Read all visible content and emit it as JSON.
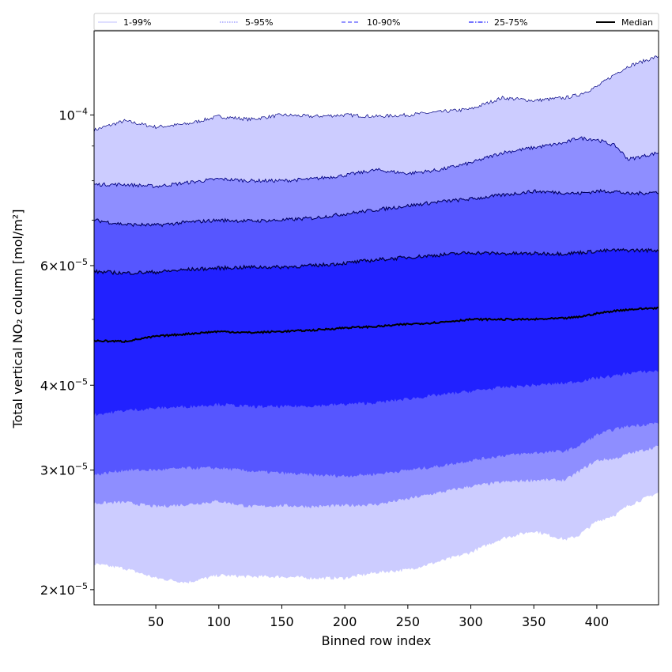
{
  "chart_data": {
    "type": "area",
    "title": "",
    "xlabel": "Binned row index",
    "ylabel": "Total vertical NO₂ column [mol/m²]",
    "y_scale": "log",
    "xlim": [
      1,
      449
    ],
    "ylim": [
      1.9e-05,
      0.000133
    ],
    "x_ticks": [
      50,
      100,
      150,
      200,
      250,
      300,
      350,
      400
    ],
    "y_ticks": [
      {
        "value": 2e-05,
        "mant": "2",
        "exp": "−5"
      },
      {
        "value": 3e-05,
        "mant": "3",
        "exp": "−5"
      },
      {
        "value": 4e-05,
        "mant": "4",
        "exp": "−5"
      },
      {
        "value": 6e-05,
        "mant": "6",
        "exp": "−5"
      },
      {
        "value": 0.0001,
        "mant": "",
        "exp": "−4"
      }
    ],
    "legend": {
      "position": "top",
      "entries": [
        {
          "label": "1-99%",
          "color": "#ccccff",
          "dash": "solid"
        },
        {
          "label": "5-95%",
          "color": "#8e8eff",
          "dash": "dotted"
        },
        {
          "label": "10-90%",
          "color": "#5656ff",
          "dash": "dashed"
        },
        {
          "label": "25-75%",
          "color": "#2121ff",
          "dash": "dashdot"
        },
        {
          "label": "Median",
          "color": "#000000",
          "dash": "solid"
        }
      ]
    },
    "x": [
      1,
      25,
      50,
      75,
      100,
      125,
      150,
      175,
      200,
      225,
      250,
      275,
      300,
      325,
      350,
      375,
      385,
      400,
      415,
      425,
      449
    ],
    "bands": [
      {
        "name": "1-99%",
        "color": "#ccccff",
        "lower": [
          2.18e-05,
          2.15e-05,
          2.08e-05,
          2.05e-05,
          2.1e-05,
          2.09e-05,
          2.09e-05,
          2.08e-05,
          2.08e-05,
          2.12e-05,
          2.14e-05,
          2.2e-05,
          2.27e-05,
          2.38e-05,
          2.44e-05,
          2.37e-05,
          2.4e-05,
          2.52e-05,
          2.58e-05,
          2.66e-05,
          2.78e-05
        ],
        "upper": [
          9.5e-05,
          9.8e-05,
          9.6e-05,
          9.7e-05,
          9.95e-05,
          9.85e-05,
          0.0001,
          9.95e-05,
          0.0001,
          9.95e-05,
          0.0001,
          0.000101,
          0.000102,
          0.000106,
          0.000105,
          0.000106,
          0.000107,
          0.00011,
          0.000115,
          0.000118,
          0.000122
        ]
      },
      {
        "name": "5-95%",
        "color": "#8e8eff",
        "lower": [
          2.68e-05,
          2.69e-05,
          2.65e-05,
          2.67e-05,
          2.7e-05,
          2.65e-05,
          2.66e-05,
          2.65e-05,
          2.66e-05,
          2.67e-05,
          2.72e-05,
          2.78e-05,
          2.84e-05,
          2.88e-05,
          2.9e-05,
          2.9e-05,
          2.98e-05,
          3.1e-05,
          3.12e-05,
          3.17e-05,
          3.25e-05
        ],
        "upper": [
          7.9e-05,
          7.9e-05,
          7.85e-05,
          7.95e-05,
          8.05e-05,
          8e-05,
          8e-05,
          8.05e-05,
          8.15e-05,
          8.3e-05,
          8.2e-05,
          8.3e-05,
          8.5e-05,
          8.8e-05,
          8.95e-05,
          9.1e-05,
          9.25e-05,
          9.2e-05,
          9e-05,
          8.6e-05,
          8.8e-05
        ]
      },
      {
        "name": "10-90%",
        "color": "#5656ff",
        "lower": [
          2.95e-05,
          3e-05,
          3e-05,
          3.02e-05,
          3.02e-05,
          2.99e-05,
          2.97e-05,
          2.95e-05,
          2.94e-05,
          2.96e-05,
          3e-05,
          3.04e-05,
          3.1e-05,
          3.15e-05,
          3.18e-05,
          3.2e-05,
          3.25e-05,
          3.38e-05,
          3.45e-05,
          3.48e-05,
          3.52e-05
        ],
        "upper": [
          7e-05,
          6.9e-05,
          6.88e-05,
          6.95e-05,
          7e-05,
          6.98e-05,
          7e-05,
          7.05e-05,
          7.15e-05,
          7.25e-05,
          7.35e-05,
          7.45e-05,
          7.52e-05,
          7.62e-05,
          7.72e-05,
          7.68e-05,
          7.66e-05,
          7.72e-05,
          7.72e-05,
          7.65e-05,
          7.7e-05
        ]
      },
      {
        "name": "25-75%",
        "color": "#2121ff",
        "lower": [
          3.62e-05,
          3.67e-05,
          3.7e-05,
          3.72e-05,
          3.75e-05,
          3.72e-05,
          3.72e-05,
          3.73e-05,
          3.75e-05,
          3.77e-05,
          3.82e-05,
          3.87e-05,
          3.92e-05,
          3.97e-05,
          4e-05,
          4.03e-05,
          4.05e-05,
          4.1e-05,
          4.13e-05,
          4.17e-05,
          4.2e-05
        ],
        "upper": [
          5.88e-05,
          5.85e-05,
          5.87e-05,
          5.92e-05,
          5.95e-05,
          5.97e-05,
          5.97e-05,
          6e-05,
          6.05e-05,
          6.12e-05,
          6.17e-05,
          6.22e-05,
          6.27e-05,
          6.25e-05,
          6.25e-05,
          6.25e-05,
          6.27e-05,
          6.3e-05,
          6.32e-05,
          6.32e-05,
          6.32e-05
        ]
      }
    ],
    "median": {
      "name": "Median",
      "color": "#000000",
      "values": [
        4.65e-05,
        4.64e-05,
        4.72e-05,
        4.76e-05,
        4.8e-05,
        4.78e-05,
        4.8e-05,
        4.82e-05,
        4.86e-05,
        4.88e-05,
        4.92e-05,
        4.95e-05,
        5e-05,
        5e-05,
        5e-05,
        5.02e-05,
        5.04e-05,
        5.1e-05,
        5.15e-05,
        5.17e-05,
        5.2e-05
      ]
    }
  }
}
